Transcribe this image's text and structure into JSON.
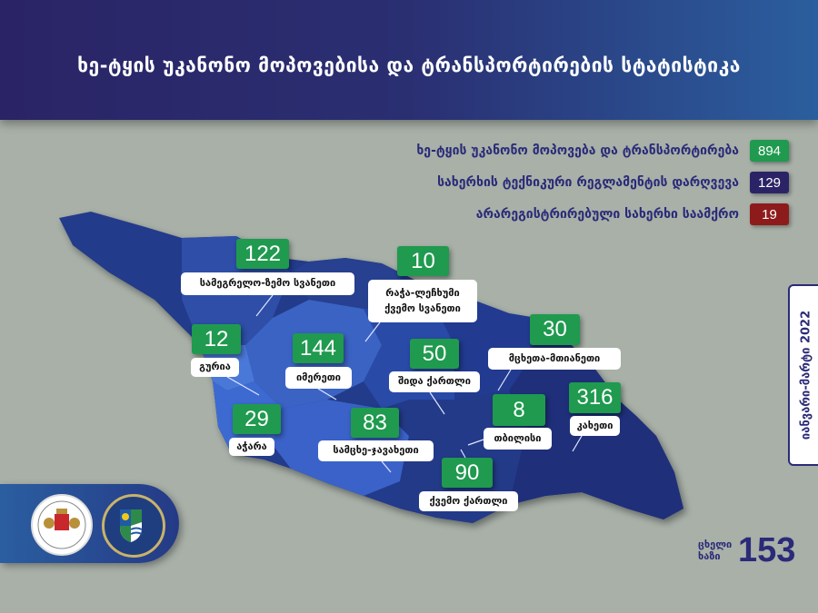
{
  "header": {
    "title": "ხე-ტყის უკანონო მოპოვებისა და ტრანსპორტირების სტატისტიკა"
  },
  "legend": [
    {
      "label": "ხე-ტყის უკანონო მოპოვება და ტრანსპორტირება",
      "value": "894",
      "color": "#1f9a4f"
    },
    {
      "label": "სახერხის ტექნიკური რეგლამენტის დარღვევა",
      "value": "129",
      "color": "#2a2466"
    },
    {
      "label": "არარეგისტრირებული სახერხი საამქრო",
      "value": "19",
      "color": "#8e1b1b"
    }
  ],
  "regions": [
    {
      "name": "სამეგრელო-ზემო სვანეთი",
      "value": "122"
    },
    {
      "name": "რაჭა-ლეჩხუმი ქვემო სვანეთი",
      "value": "10"
    },
    {
      "name": "გურია",
      "value": "12"
    },
    {
      "name": "იმერეთი",
      "value": "144"
    },
    {
      "name": "შიდა ქართლი",
      "value": "50"
    },
    {
      "name": "მცხეთა-მთიანეთი",
      "value": "30"
    },
    {
      "name": "აჭარა",
      "value": "29"
    },
    {
      "name": "სამცხე-ჯავახეთი",
      "value": "83"
    },
    {
      "name": "თბილისი",
      "value": "8"
    },
    {
      "name": "კახეთი",
      "value": "316"
    },
    {
      "name": "ქვემო ქართლი",
      "value": "90"
    }
  ],
  "period": "იანვარი-მარტი 2022",
  "hotline": {
    "label": "ცხელი ხაზი",
    "number": "153"
  },
  "logos": [
    "ministry-seal",
    "agency-seal"
  ]
}
